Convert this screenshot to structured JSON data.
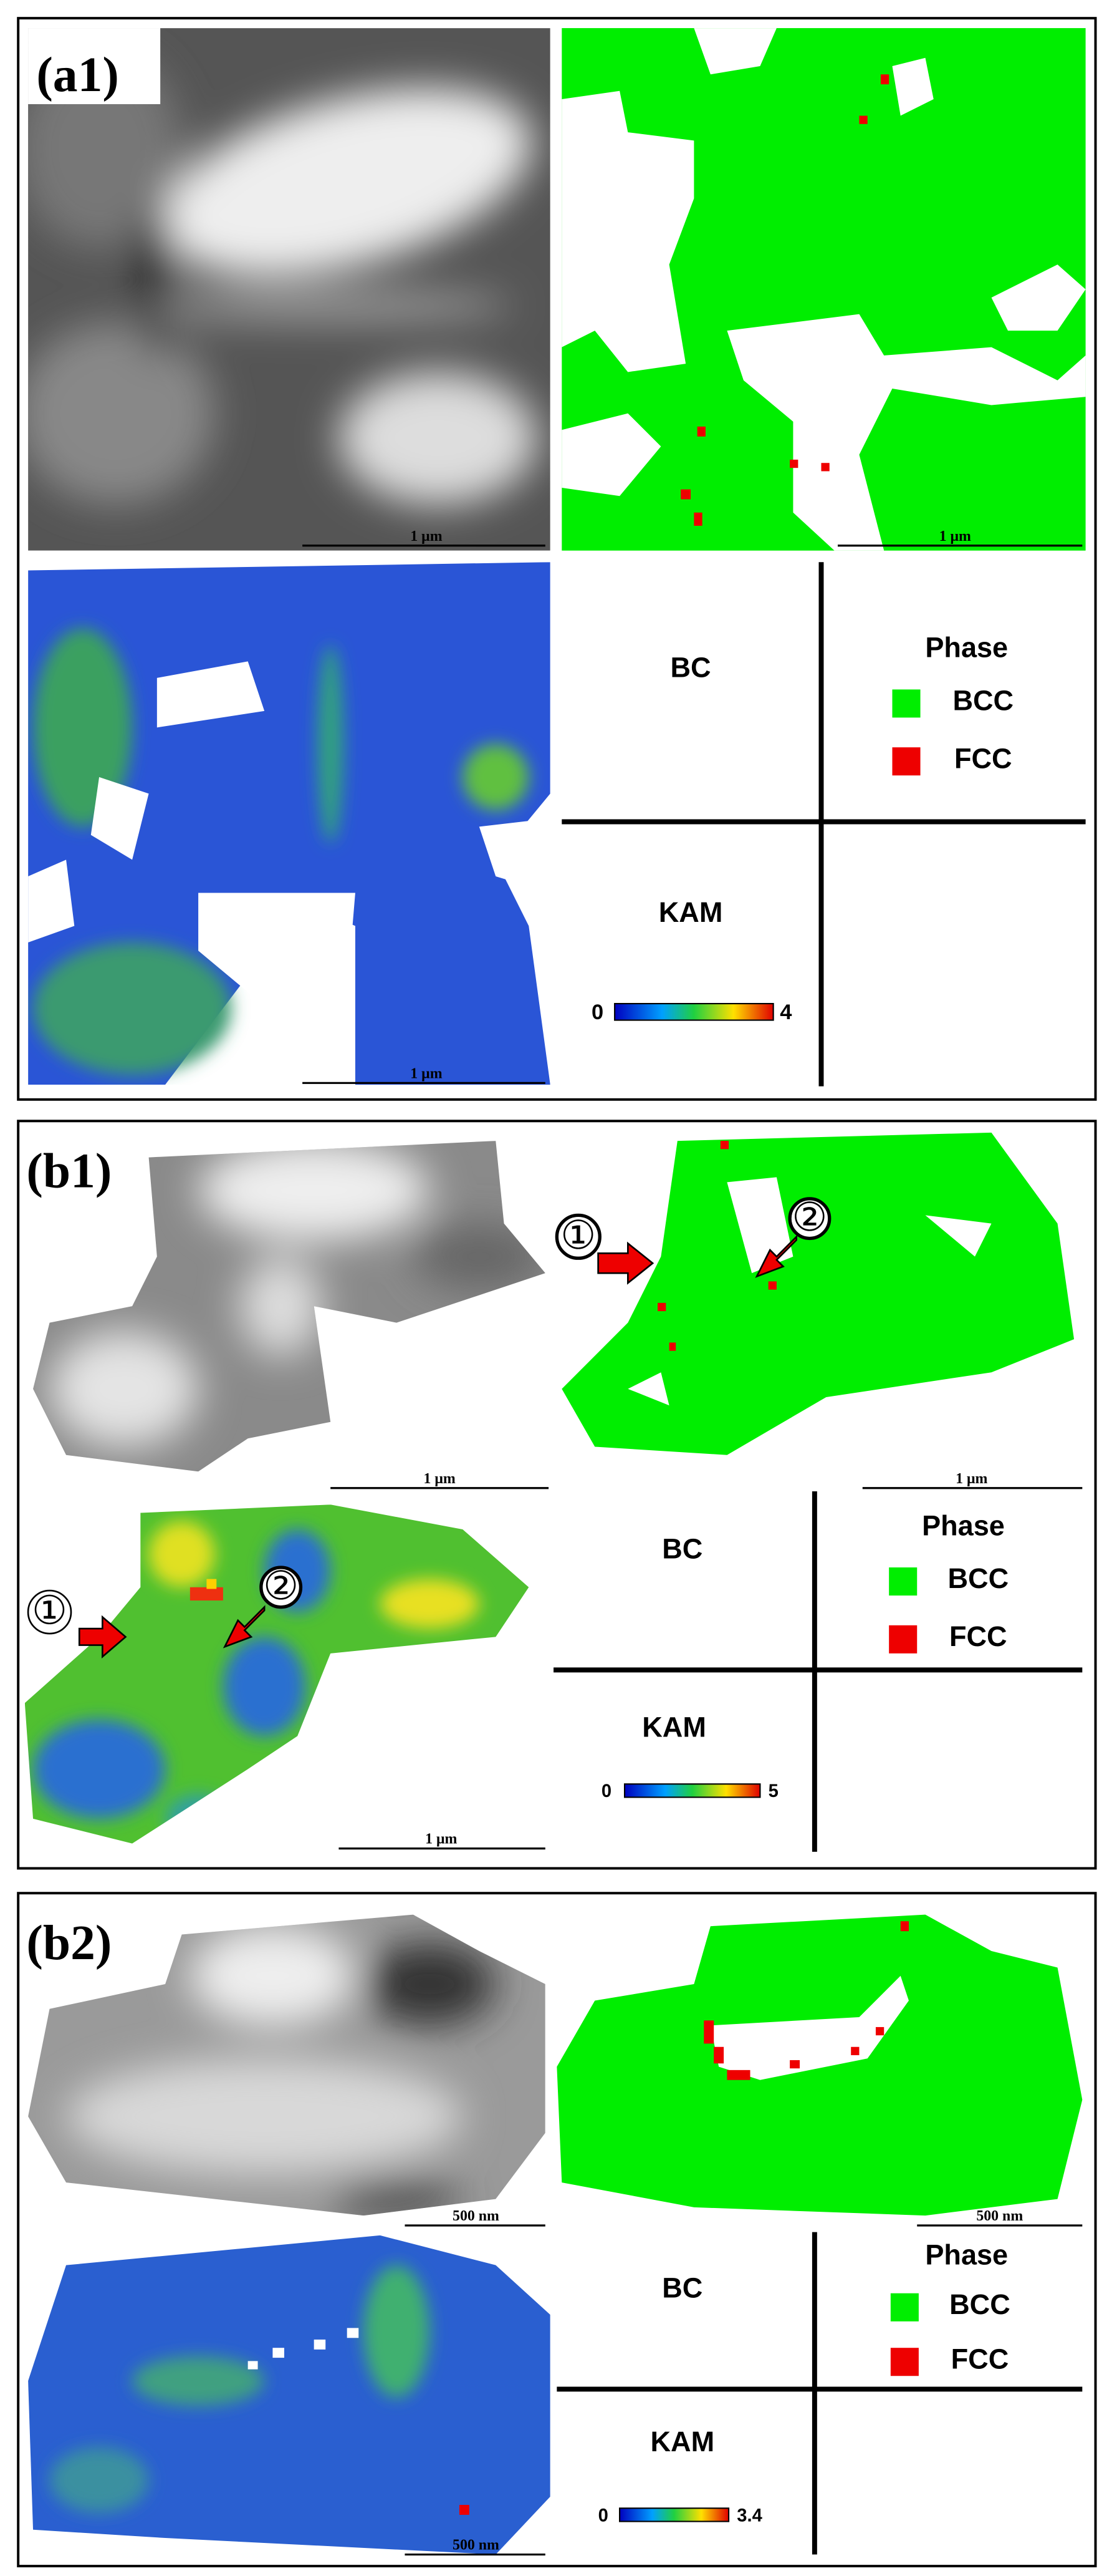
{
  "panels": [
    {
      "label": "(a1)",
      "scale_bars": [
        "1 μm",
        "1 μm",
        "1 μm"
      ],
      "legend": {
        "bc": "BC",
        "phase_title": "Phase",
        "phases": [
          {
            "name": "BCC",
            "color": "#00ee00"
          },
          {
            "name": "FCC",
            "color": "#ee0000"
          }
        ],
        "kam": "KAM",
        "kam_range": [
          0,
          4
        ]
      }
    },
    {
      "label": "(b1)",
      "scale_bars": [
        "1 μm",
        "1 μm",
        "1 μm"
      ],
      "markers": [
        "①",
        "②"
      ],
      "legend": {
        "bc": "BC",
        "phase_title": "Phase",
        "phases": [
          {
            "name": "BCC",
            "color": "#00ee00"
          },
          {
            "name": "FCC",
            "color": "#ee0000"
          }
        ],
        "kam": "KAM",
        "kam_range": [
          0,
          5
        ]
      }
    },
    {
      "label": "(b2)",
      "scale_bars": [
        "500 nm",
        "500 nm",
        "500 nm"
      ],
      "legend": {
        "bc": "BC",
        "phase_title": "Phase",
        "phases": [
          {
            "name": "BCC",
            "color": "#00ee00"
          },
          {
            "name": "FCC",
            "color": "#ee0000"
          }
        ],
        "kam": "KAM",
        "kam_range": [
          0,
          3.4
        ]
      }
    }
  ]
}
